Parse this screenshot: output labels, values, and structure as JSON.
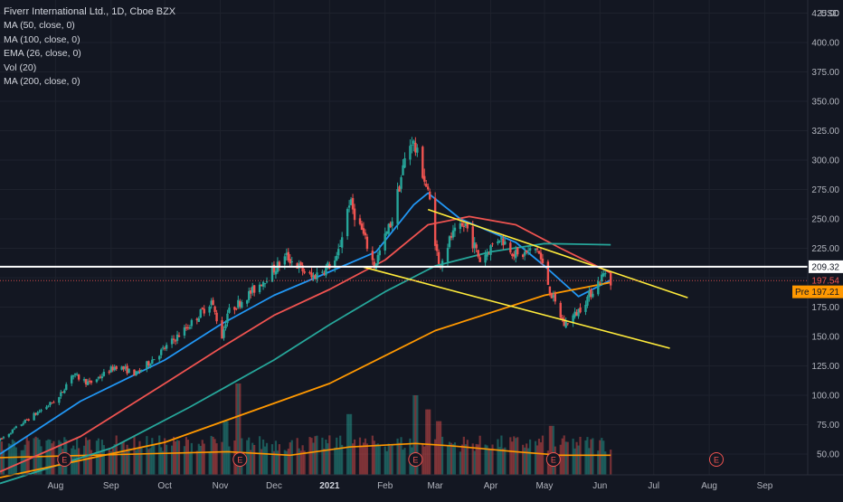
{
  "legend": {
    "title": "Fiverr International Ltd., 1D, Cboe BZX",
    "studies": [
      "MA (50, close, 0)",
      "MA (100, close, 0)",
      "EMA (26, close, 0)",
      "Vol (20)",
      "MA (200, close, 0)"
    ]
  },
  "currency_label": "USD",
  "chart_data": {
    "type": "candlestick",
    "x_axis": {
      "labels": [
        "Aug",
        "Sep",
        "Oct",
        "Nov",
        "Dec",
        "2021",
        "Feb",
        "Mar",
        "Apr",
        "May",
        "Jun",
        "Jul",
        "Aug",
        "Sep"
      ],
      "label_dates": [
        "2020-08-01",
        "2020-09-01",
        "2020-10-01",
        "2020-11-01",
        "2020-12-01",
        "2021-01-01",
        "2021-02-01",
        "2021-03-01",
        "2021-04-01",
        "2021-05-01",
        "2021-06-01",
        "2021-07-01",
        "2021-08-01",
        "2021-09-01"
      ],
      "range": [
        "2020-07-01",
        "2021-09-25"
      ]
    },
    "y_axis": {
      "ticks": [
        "425.00",
        "400.00",
        "375.00",
        "350.00",
        "325.00",
        "300.00",
        "275.00",
        "250.00",
        "225.00",
        "200.00",
        "175.00",
        "150.00",
        "125.00",
        "100.00",
        "75.00",
        "50.00"
      ],
      "range": [
        37,
        435
      ],
      "unit": "USD"
    },
    "price_series": {
      "start": "2020-07-01",
      "end": "2021-06-07",
      "anchors": [
        [
          "2020-07-01",
          62
        ],
        [
          "2020-07-15",
          78
        ],
        [
          "2020-08-03",
          98
        ],
        [
          "2020-08-10",
          118
        ],
        [
          "2020-08-20",
          110
        ],
        [
          "2020-09-04",
          125
        ],
        [
          "2020-09-15",
          118
        ],
        [
          "2020-10-01",
          140
        ],
        [
          "2020-10-15",
          160
        ],
        [
          "2020-10-27",
          180
        ],
        [
          "2020-11-02",
          150
        ],
        [
          "2020-11-05",
          170
        ],
        [
          "2020-11-20",
          190
        ],
        [
          "2020-12-08",
          218
        ],
        [
          "2020-12-22",
          200
        ],
        [
          "2021-01-05",
          215
        ],
        [
          "2021-01-12",
          265
        ],
        [
          "2021-01-19",
          240
        ],
        [
          "2021-01-26",
          210
        ],
        [
          "2021-02-05",
          250
        ],
        [
          "2021-02-12",
          300
        ],
        [
          "2021-02-16",
          318
        ],
        [
          "2021-02-22",
          290
        ],
        [
          "2021-02-26",
          265
        ],
        [
          "2021-03-03",
          210
        ],
        [
          "2021-03-10",
          235
        ],
        [
          "2021-03-18",
          245
        ],
        [
          "2021-03-26",
          215
        ],
        [
          "2021-04-06",
          235
        ],
        [
          "2021-04-16",
          218
        ],
        [
          "2021-04-27",
          225
        ],
        [
          "2021-05-05",
          185
        ],
        [
          "2021-05-12",
          160
        ],
        [
          "2021-05-19",
          170
        ],
        [
          "2021-05-26",
          185
        ],
        [
          "2021-06-04",
          205
        ],
        [
          "2021-06-07",
          197.5
        ]
      ]
    },
    "moving_averages": [
      {
        "name": "EMA (26, close, 0)",
        "color": "#2196f3",
        "points": [
          [
            "2020-07-01",
            50
          ],
          [
            "2020-08-15",
            95
          ],
          [
            "2020-10-01",
            130
          ],
          [
            "2020-11-01",
            160
          ],
          [
            "2020-12-01",
            185
          ],
          [
            "2021-01-01",
            205
          ],
          [
            "2021-01-27",
            222
          ],
          [
            "2021-02-17",
            262
          ],
          [
            "2021-02-25",
            272
          ],
          [
            "2021-03-15",
            250
          ],
          [
            "2021-04-15",
            230
          ],
          [
            "2021-05-01",
            210
          ],
          [
            "2021-05-20",
            184
          ],
          [
            "2021-06-07",
            198
          ]
        ]
      },
      {
        "name": "MA (50, close, 0)",
        "color": "#ef5350",
        "points": [
          [
            "2020-07-01",
            35
          ],
          [
            "2020-08-15",
            65
          ],
          [
            "2020-10-01",
            110
          ],
          [
            "2020-11-01",
            140
          ],
          [
            "2020-12-01",
            168
          ],
          [
            "2021-01-01",
            190
          ],
          [
            "2021-02-01",
            215
          ],
          [
            "2021-02-25",
            245
          ],
          [
            "2021-03-20",
            252
          ],
          [
            "2021-04-15",
            245
          ],
          [
            "2021-05-10",
            225
          ],
          [
            "2021-06-07",
            204
          ]
        ]
      },
      {
        "name": "MA (100, close, 0)",
        "color": "#26a69a",
        "points": [
          [
            "2020-07-01",
            25
          ],
          [
            "2020-09-01",
            55
          ],
          [
            "2020-10-15",
            90
          ],
          [
            "2020-12-01",
            130
          ],
          [
            "2021-01-01",
            160
          ],
          [
            "2021-02-01",
            188
          ],
          [
            "2021-03-01",
            210
          ],
          [
            "2021-04-01",
            222
          ],
          [
            "2021-05-01",
            229
          ],
          [
            "2021-06-07",
            228
          ]
        ]
      },
      {
        "name": "MA (200, close, 0)",
        "color": "#ff9800",
        "points": [
          [
            "2020-07-01",
            30
          ],
          [
            "2020-10-01",
            60
          ],
          [
            "2021-01-01",
            110
          ],
          [
            "2021-03-01",
            155
          ],
          [
            "2021-05-01",
            185
          ],
          [
            "2021-06-07",
            196
          ]
        ]
      }
    ],
    "volume": {
      "ma_name": "Vol (20)",
      "ma_color": "#ff9800",
      "ma_points": [
        [
          "2020-07-01",
          47
        ],
        [
          "2020-09-15",
          50
        ],
        [
          "2020-11-05",
          52
        ],
        [
          "2020-12-10",
          49
        ],
        [
          "2021-01-12",
          56
        ],
        [
          "2021-02-18",
          59
        ],
        [
          "2021-03-10",
          57
        ],
        [
          "2021-04-15",
          52
        ],
        [
          "2021-05-10",
          49
        ],
        [
          "2021-06-07",
          49
        ]
      ],
      "spikes": [
        [
          "2020-11-11",
          110
        ],
        [
          "2020-11-04",
          78
        ],
        [
          "2021-01-12",
          84
        ],
        [
          "2021-02-18",
          100
        ],
        [
          "2021-02-25",
          88
        ],
        [
          "2021-03-03",
          78
        ],
        [
          "2021-05-05",
          74
        ]
      ]
    },
    "trendlines": [
      {
        "name": "upper-channel",
        "color": "#ffeb3b",
        "from": [
          "2021-02-25",
          258
        ],
        "to": [
          "2021-07-20",
          183
        ]
      },
      {
        "name": "lower-channel",
        "color": "#ffeb3b",
        "from": [
          "2021-01-20",
          209
        ],
        "to": [
          "2021-07-10",
          140
        ]
      }
    ],
    "horizontal_line": {
      "value": 209.32,
      "label": "209.32",
      "color": "#ffffff"
    },
    "price_labels": [
      {
        "value": 197.54,
        "label": "197.54",
        "text_color": "#ef5350",
        "bg": "#131722"
      },
      {
        "prefix": "Pre",
        "value": 197.21,
        "label": "197.21",
        "text_color": "#131722",
        "bg": "#ff9800"
      }
    ],
    "earnings_markers": {
      "label": "E",
      "dates": [
        "2020-08-06",
        "2020-11-12",
        "2021-02-18",
        "2021-05-06",
        "2021-08-05"
      ]
    }
  }
}
